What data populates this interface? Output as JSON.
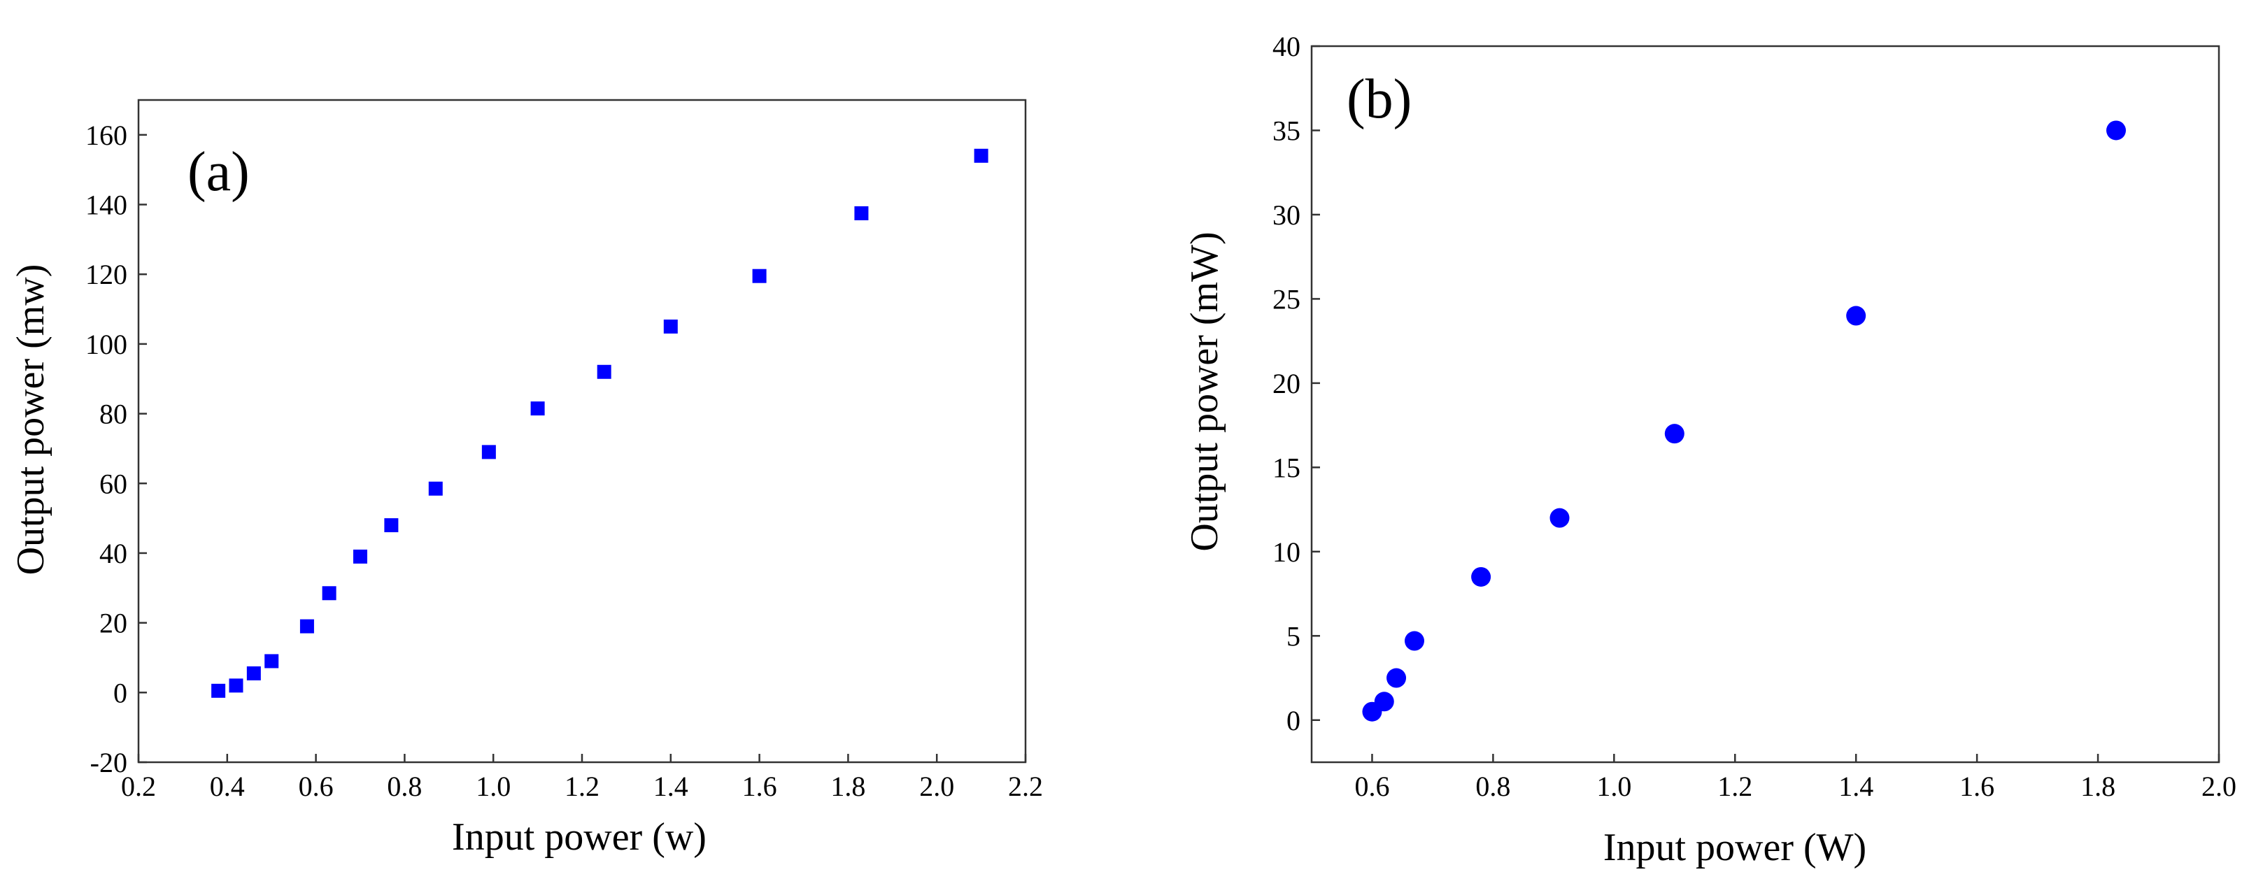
{
  "chart_data": [
    {
      "type": "scatter",
      "panel_label": "(a)",
      "xlabel": "Input power (w)",
      "ylabel": "Output power (mw)",
      "xlim": [
        0.2,
        2.2
      ],
      "ylim": [
        -20,
        170
      ],
      "xticks": [
        0.2,
        0.4,
        0.6,
        0.8,
        1.0,
        1.2,
        1.4,
        1.6,
        1.8,
        2.0,
        2.2
      ],
      "xtick_labels": [
        "0.2",
        "0.4",
        "0.6",
        "0.8",
        "1.0",
        "1.2",
        "1.4",
        "1.6",
        "1.8",
        "2.0",
        "2.2"
      ],
      "yticks": [
        -20,
        0,
        20,
        40,
        60,
        80,
        100,
        120,
        140,
        160
      ],
      "ytick_labels": [
        "-20",
        "0",
        "20",
        "40",
        "60",
        "80",
        "100",
        "120",
        "140",
        "160"
      ],
      "marker": "square",
      "color": "#0000ff",
      "series": [
        {
          "name": "Output power",
          "x": [
            0.38,
            0.42,
            0.46,
            0.5,
            0.58,
            0.63,
            0.7,
            0.77,
            0.87,
            0.99,
            1.1,
            1.25,
            1.4,
            1.6,
            1.83,
            2.1
          ],
          "y": [
            0.5,
            2,
            5.5,
            9,
            19,
            28.5,
            39,
            48,
            58.5,
            69,
            81.5,
            92,
            105,
            119.5,
            137.5,
            154
          ]
        }
      ]
    },
    {
      "type": "scatter",
      "panel_label": "(b)",
      "xlabel": "Input power (W)",
      "ylabel": "Output power (mW)",
      "xlim": [
        0.5,
        2.0
      ],
      "ylim": [
        -2.5,
        40
      ],
      "xticks": [
        0.6,
        0.8,
        1.0,
        1.2,
        1.4,
        1.6,
        1.8,
        2.0
      ],
      "xtick_labels": [
        "0.6",
        "0.8",
        "1.0",
        "1.2",
        "1.4",
        "1.6",
        "1.8",
        "2.0"
      ],
      "yticks": [
        0,
        5,
        10,
        15,
        20,
        25,
        30,
        35,
        40
      ],
      "ytick_labels": [
        "0",
        "5",
        "10",
        "15",
        "20",
        "25",
        "30",
        "35",
        "40"
      ],
      "marker": "circle",
      "color": "#0000ff",
      "series": [
        {
          "name": "Output power",
          "x": [
            0.6,
            0.62,
            0.64,
            0.67,
            0.78,
            0.91,
            1.1,
            1.4,
            1.83
          ],
          "y": [
            0.5,
            1.1,
            2.5,
            4.7,
            8.5,
            12,
            17,
            24,
            35
          ]
        }
      ]
    }
  ]
}
